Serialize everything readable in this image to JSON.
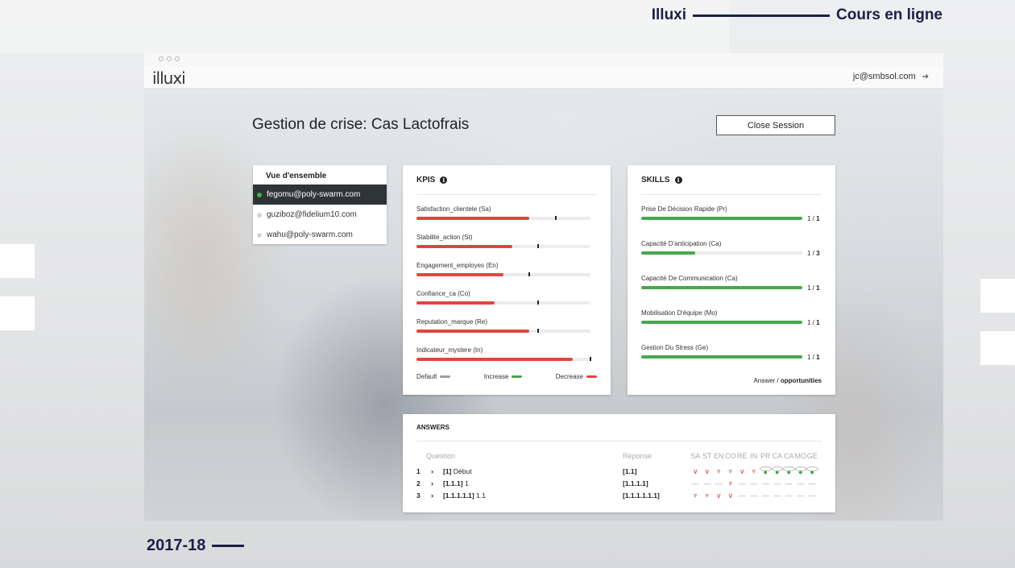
{
  "brand": {
    "name": "Illuxi",
    "tagline": "Cours en ligne",
    "year": "2017-18"
  },
  "app": {
    "logo": "illuxi",
    "user_email": "jc@smbsol.com"
  },
  "page": {
    "title": "Gestion de crise: Cas Lactofrais",
    "close_button": "Close Session"
  },
  "participants": {
    "heading": "Vue d'ensemble",
    "items": [
      {
        "email": "fegomu@poly-swarm.com",
        "active": true
      },
      {
        "email": "guziboz@fidelium10.com",
        "active": false
      },
      {
        "email": "wahu@poly-swarm.com",
        "active": false
      }
    ]
  },
  "kpis": {
    "title": "KPIS",
    "items": [
      {
        "label": "Satisfaction_clientele (Sa)",
        "value": 0.65,
        "default": 0.8
      },
      {
        "label": "Stabilite_action (St)",
        "value": 0.55,
        "default": 0.7
      },
      {
        "label": "Engagement_employes (En)",
        "value": 0.5,
        "default": 0.65
      },
      {
        "label": "Confiance_ca (Co)",
        "value": 0.45,
        "default": 0.7
      },
      {
        "label": "Reputation_marque (Re)",
        "value": 0.65,
        "default": 0.7
      },
      {
        "label": "Indicateur_mystere (In)",
        "value": 0.9,
        "default": 1.0
      }
    ],
    "legend": {
      "default": "Default",
      "increase": "Increase",
      "decrease": "Decrease"
    },
    "colors": {
      "default": "#9e9e9e",
      "increase": "#46a84c",
      "decrease": "#e0463e"
    }
  },
  "skills": {
    "title": "SKILLS",
    "items": [
      {
        "label": "Prise De Décision Rapide (Pr)",
        "answered": "1",
        "total": "1",
        "progress": 1.0
      },
      {
        "label": "Capacité D'anticipation (Ca)",
        "answered": "1",
        "total": "3",
        "progress": 0.333
      },
      {
        "label": "Capacité De Communication (Ca)",
        "answered": "1",
        "total": "1",
        "progress": 1.0
      },
      {
        "label": "Mobilisation D'équipe (Mo)",
        "answered": "1",
        "total": "1",
        "progress": 1.0
      },
      {
        "label": "Gestion Du Stress (Ge)",
        "answered": "1",
        "total": "1",
        "progress": 1.0
      }
    ],
    "footer_answer": "Answer /",
    "footer_opportunities": "opportunities"
  },
  "answers": {
    "title": "ANSWERS",
    "col_question": "Question",
    "col_response": "Réponse",
    "indicator_heads": [
      "SA",
      "ST",
      "EN",
      "CO",
      "RE",
      "IN",
      "PR",
      "CA",
      "CA",
      "MO",
      "GE"
    ],
    "rows": [
      {
        "num": "1",
        "qid": "[1]",
        "qtext": "Début",
        "response": "[1.1]",
        "indicators": [
          "down",
          "down",
          "down2",
          "down2",
          "down",
          "down2",
          "dot",
          "dot",
          "dot",
          "dot",
          "dot"
        ]
      },
      {
        "num": "2",
        "qid": "[1.1.1]",
        "qtext": "1",
        "response": "[1.1.1.1]",
        "indicators": [
          "none",
          "none",
          "none",
          "down2",
          "none",
          "none",
          "none",
          "none",
          "none",
          "none",
          "none"
        ]
      },
      {
        "num": "3",
        "qid": "[1.1.1.1.1]",
        "qtext": "1.1",
        "response": "[1.1.1.1.1.1]",
        "indicators": [
          "down2",
          "down2",
          "down",
          "down",
          "none",
          "none",
          "none",
          "none",
          "none",
          "none",
          "none"
        ]
      }
    ]
  }
}
